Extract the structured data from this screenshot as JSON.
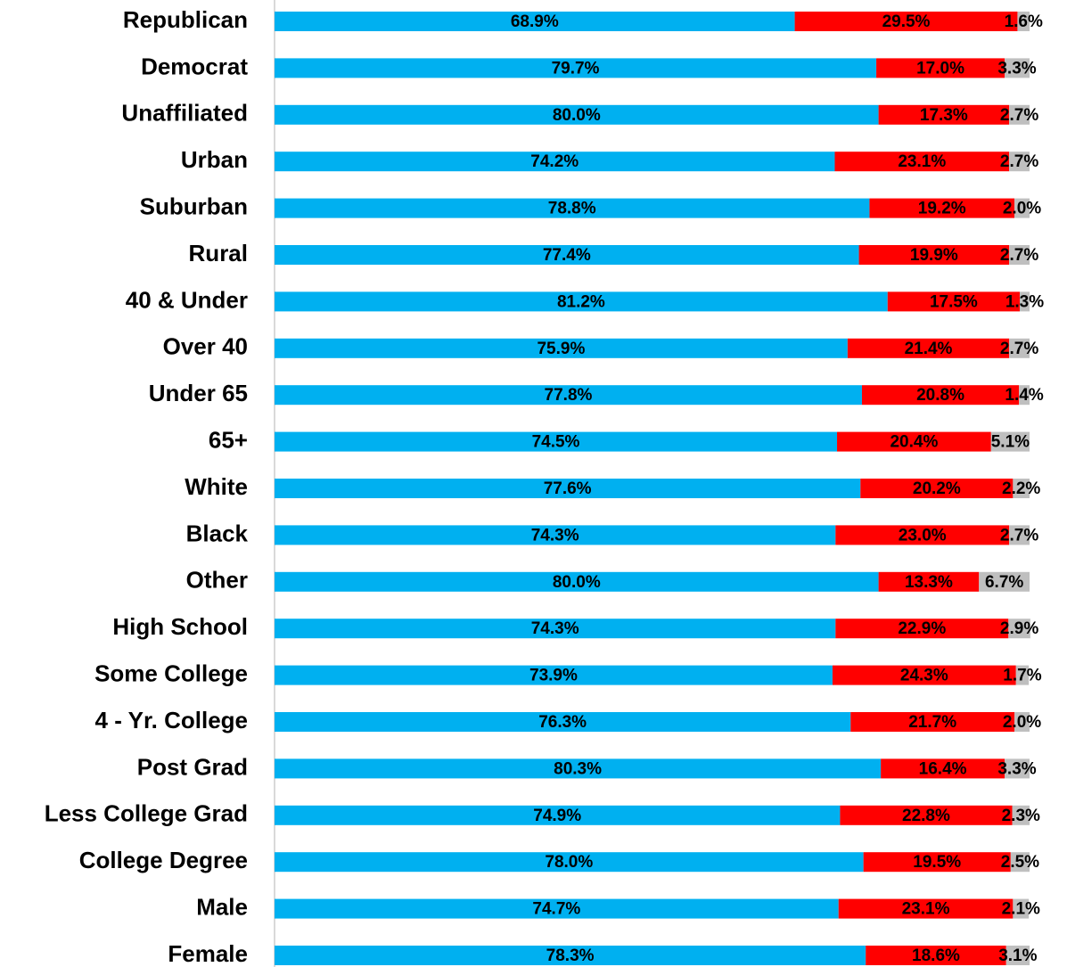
{
  "chart_data": {
    "type": "stacked-bar-horizontal",
    "categories": [
      "Republican",
      "Democrat",
      "Unaffiliated",
      "Urban",
      "Suburban",
      "Rural",
      "40 & Under",
      "Over 40",
      "Under 65",
      "65+",
      "White",
      "Black",
      "Other",
      "High School",
      "Some College",
      "4 - Yr. College",
      "Post Grad",
      "Less College Grad",
      "College Degree",
      "Male",
      "Female"
    ],
    "xlim": [
      0,
      100
    ],
    "series": [
      {
        "color": "#00b0f0",
        "values": [
          68.9,
          79.7,
          80.0,
          74.2,
          78.8,
          77.4,
          81.2,
          75.9,
          77.8,
          74.5,
          77.6,
          74.3,
          80.0,
          74.3,
          73.9,
          76.3,
          80.3,
          74.9,
          78.0,
          74.7,
          78.3
        ],
        "value_labels": [
          "68.9%",
          "79.7%",
          "80.0%",
          "74.2%",
          "78.8%",
          "77.4%",
          "81.2%",
          "75.9%",
          "77.8%",
          "74.5%",
          "77.6%",
          "74.3%",
          "80.0%",
          "74.3%",
          "73.9%",
          "76.3%",
          "80.3%",
          "74.9%",
          "78.0%",
          "74.7%",
          "78.3%"
        ]
      },
      {
        "color": "#ff0000",
        "values": [
          29.5,
          17.0,
          17.3,
          23.1,
          19.2,
          19.9,
          17.5,
          21.4,
          20.8,
          20.4,
          20.2,
          23.0,
          13.3,
          22.9,
          24.3,
          21.7,
          16.4,
          22.8,
          19.5,
          23.1,
          18.6
        ],
        "value_labels": [
          "29.5%",
          "17.0%",
          "17.3%",
          "23.1%",
          "19.2%",
          "19.9%",
          "17.5%",
          "21.4%",
          "20.8%",
          "20.4%",
          "20.2%",
          "23.0%",
          "13.3%",
          "22.9%",
          "24.3%",
          "21.7%",
          "16.4%",
          "22.8%",
          "19.5%",
          "23.1%",
          "18.6%"
        ]
      },
      {
        "color": "#bfbfbf",
        "values": [
          1.6,
          3.3,
          2.7,
          2.7,
          2.0,
          2.7,
          1.3,
          2.7,
          1.4,
          5.1,
          2.2,
          2.7,
          6.7,
          2.9,
          1.7,
          2.0,
          3.3,
          2.3,
          2.5,
          2.1,
          3.1
        ],
        "value_labels": [
          "1.6%",
          "3.3%",
          "2.7%",
          "2.7%",
          "2.0%",
          "2.7%",
          "1.3%",
          "2.7%",
          "1.4%",
          "5.1%",
          "2.2%",
          "2.7%",
          "6.7%",
          "2.9%",
          "1.7%",
          "2.0%",
          "3.3%",
          "2.3%",
          "2.5%",
          "2.1%",
          "3.1%"
        ]
      }
    ]
  }
}
